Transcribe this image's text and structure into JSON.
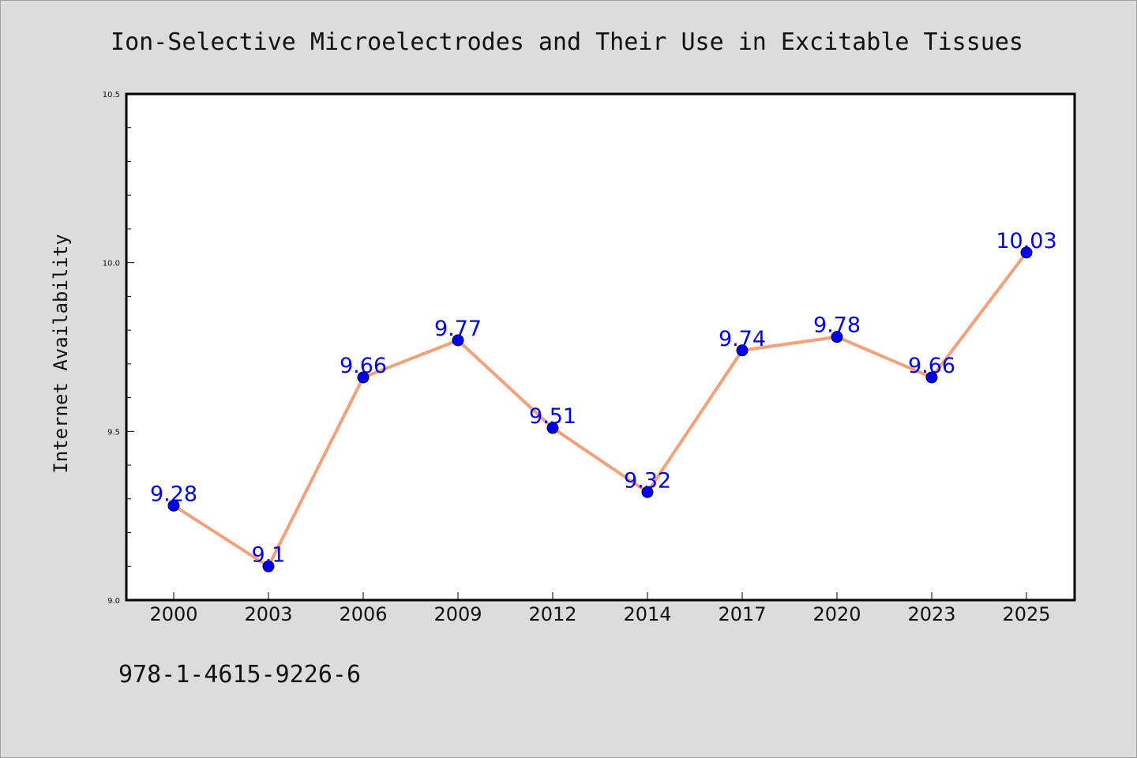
{
  "chart_data": {
    "type": "line",
    "title": "Ion-Selective Microelectrodes and Their Use in Excitable Tissues",
    "xlabel": "",
    "ylabel": "Internet Availability",
    "categories": [
      "2000",
      "2003",
      "2006",
      "2009",
      "2012",
      "2014",
      "2017",
      "2020",
      "2023",
      "2025"
    ],
    "series": [
      {
        "values": [
          9.28,
          9.1,
          9.66,
          9.77,
          9.51,
          9.32,
          9.74,
          9.78,
          9.66,
          10.03
        ],
        "labels": [
          "9.28",
          "9.1",
          "9.66",
          "9.77",
          "9.51",
          "9.32",
          "9.74",
          "9.78",
          "9.66",
          "10.03"
        ]
      }
    ],
    "ylim": [
      9.0,
      10.5
    ],
    "yticks": [
      "9.0",
      "9.5",
      "10.0",
      "10.5"
    ],
    "grid": false,
    "legend": "none",
    "colors": {
      "line": "#f4a07a",
      "marker": "#0000ee",
      "label": "#0000ee",
      "background": "#dcdcdc",
      "plot_background": "#ffffff"
    }
  },
  "footer": {
    "isbn": "978-1-4615-9226-6"
  }
}
